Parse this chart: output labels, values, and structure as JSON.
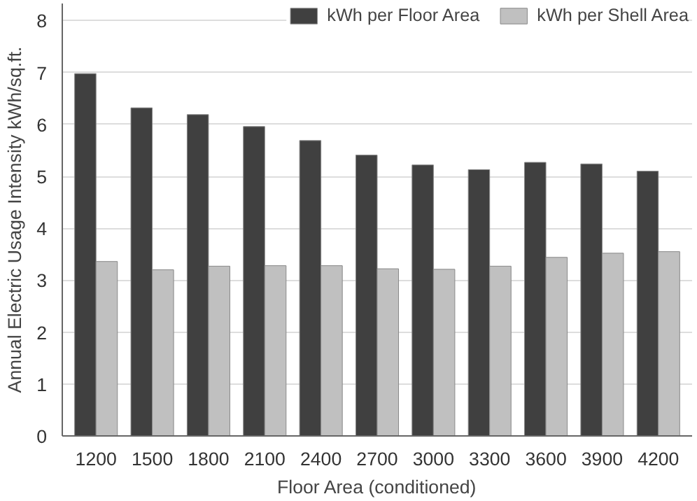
{
  "chart_data": {
    "type": "bar",
    "xlabel": "Floor Area (conditioned)",
    "ylabel": "Annual Electric Usage Intensity kWh/sq.ft.",
    "categories": [
      "1200",
      "1500",
      "1800",
      "2100",
      "2400",
      "2700",
      "3000",
      "3300",
      "3600",
      "3900",
      "4200"
    ],
    "series": [
      {
        "name": "kWh per Floor Area",
        "color": "#404040",
        "values": [
          6.98,
          6.32,
          6.19,
          5.96,
          5.69,
          5.41,
          5.22,
          5.13,
          5.27,
          5.24,
          5.1
        ]
      },
      {
        "name": "kWh per Shell Area",
        "color": "#c0c0c0",
        "values": [
          3.36,
          3.2,
          3.27,
          3.28,
          3.28,
          3.22,
          3.21,
          3.27,
          3.44,
          3.52,
          3.55
        ]
      }
    ],
    "ylim": [
      0,
      8.33
    ],
    "yticks": [
      0,
      1,
      2,
      3,
      4,
      5,
      6,
      7,
      8
    ],
    "grid": "y",
    "legend": "top right"
  }
}
